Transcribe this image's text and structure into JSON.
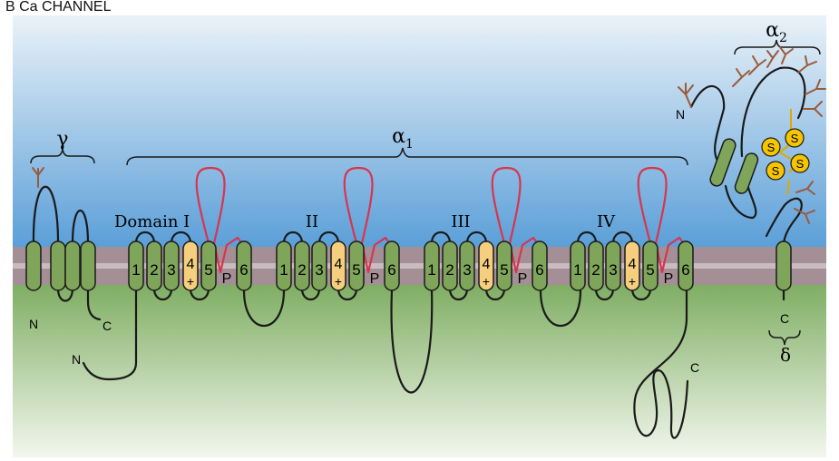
{
  "panel_title": "B  Ca   CHANNEL",
  "subunits": {
    "gamma": {
      "label": "γ",
      "n_label": "N",
      "c_label": "C"
    },
    "alpha1": {
      "label": "α",
      "sub": "1",
      "n_label": "N",
      "c_label": "C"
    },
    "alpha2": {
      "label": "α",
      "sub": "2",
      "n_label": "N"
    },
    "delta": {
      "label": "δ",
      "c_label": "C"
    }
  },
  "domains": [
    {
      "label": "Domain I"
    },
    {
      "label": "II"
    },
    {
      "label": "III"
    },
    {
      "label": "IV"
    }
  ],
  "segments": {
    "s1": "1",
    "s2": "2",
    "s3": "3",
    "s4": "4",
    "s4_charge": "+",
    "s5": "5",
    "pore": "P",
    "s6": "6"
  },
  "disulfide_label": "S",
  "colors": {
    "extracellular_top": "#5b9fd8",
    "extracellular_bottom": "#eaf2f8",
    "membrane": "#a58f96",
    "intracellular_top": "#7fae63",
    "intracellular_bottom": "#f3f7ee",
    "helix": "#7fa55a",
    "voltage_sensor": "#f5cf7e",
    "p_loop": "#d9344d",
    "glycosylation": "#9b5a3c",
    "disulfide": "#f7c400"
  }
}
